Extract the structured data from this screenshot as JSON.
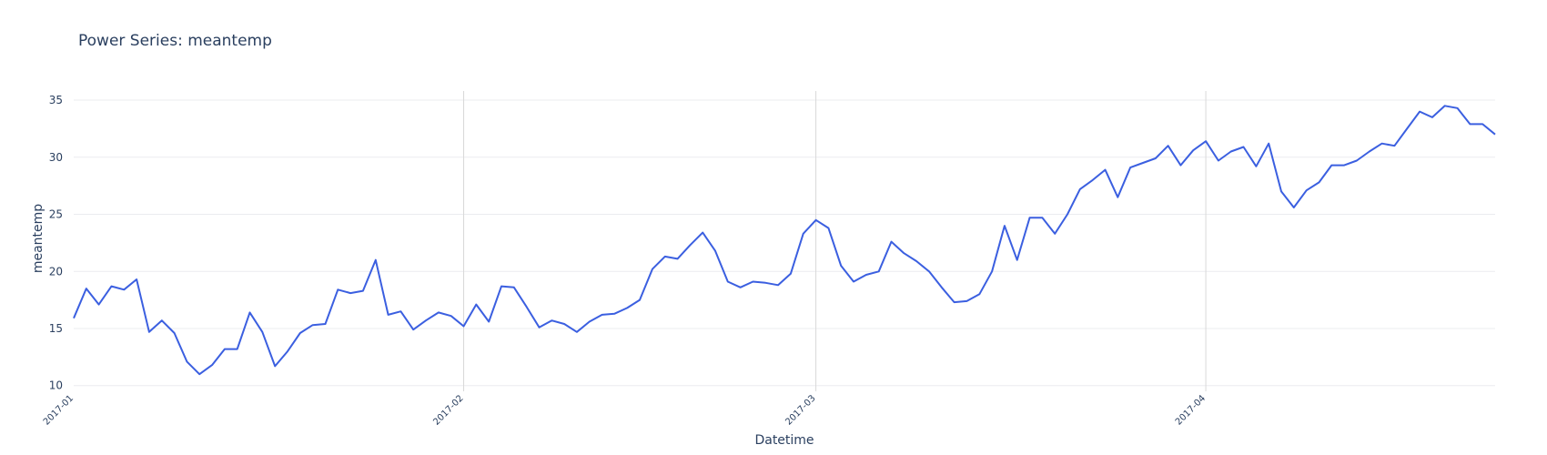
{
  "chart_data": {
    "type": "line",
    "title": "Power Series: meantemp",
    "xlabel": "Datetime",
    "ylabel": "meantemp",
    "ylim": [
      9.5,
      35.8
    ],
    "xlim": [
      "2017-01-01",
      "2017-04-24"
    ],
    "yticks": [
      10,
      15,
      20,
      25,
      30,
      35
    ],
    "xticks": [
      {
        "date": "2017-01-01",
        "label": "2017-01"
      },
      {
        "date": "2017-02-01",
        "label": "2017-02"
      },
      {
        "date": "2017-03-01",
        "label": "2017-03"
      },
      {
        "date": "2017-04-01",
        "label": "2017-04"
      }
    ],
    "grid": true,
    "colors": {
      "line": "#3b5fe0",
      "grid": "#ebecef",
      "vgrid": "#d9d9d9",
      "text": "#2a3f5f"
    },
    "series": [
      {
        "x": [
          "2017-01-01",
          "2017-01-02",
          "2017-01-03",
          "2017-01-04",
          "2017-01-05",
          "2017-01-06",
          "2017-01-07",
          "2017-01-08",
          "2017-01-09",
          "2017-01-10",
          "2017-01-11",
          "2017-01-12",
          "2017-01-13",
          "2017-01-14",
          "2017-01-15",
          "2017-01-16",
          "2017-01-17",
          "2017-01-18",
          "2017-01-19",
          "2017-01-20",
          "2017-01-21",
          "2017-01-22",
          "2017-01-23",
          "2017-01-24",
          "2017-01-25",
          "2017-01-26",
          "2017-01-27",
          "2017-01-28",
          "2017-01-29",
          "2017-01-30",
          "2017-01-31",
          "2017-02-01",
          "2017-02-02",
          "2017-02-03",
          "2017-02-04",
          "2017-02-05",
          "2017-02-06",
          "2017-02-07",
          "2017-02-08",
          "2017-02-09",
          "2017-02-10",
          "2017-02-11",
          "2017-02-12",
          "2017-02-13",
          "2017-02-14",
          "2017-02-15",
          "2017-02-16",
          "2017-02-17",
          "2017-02-18",
          "2017-02-19",
          "2017-02-20",
          "2017-02-21",
          "2017-02-22",
          "2017-02-23",
          "2017-02-24",
          "2017-02-25",
          "2017-02-26",
          "2017-02-27",
          "2017-02-28",
          "2017-03-01",
          "2017-03-02",
          "2017-03-03",
          "2017-03-04",
          "2017-03-05",
          "2017-03-06",
          "2017-03-07",
          "2017-03-08",
          "2017-03-09",
          "2017-03-10",
          "2017-03-11",
          "2017-03-12",
          "2017-03-13",
          "2017-03-14",
          "2017-03-15",
          "2017-03-16",
          "2017-03-17",
          "2017-03-18",
          "2017-03-19",
          "2017-03-20",
          "2017-03-21",
          "2017-03-22",
          "2017-03-23",
          "2017-03-24",
          "2017-03-25",
          "2017-03-26",
          "2017-03-27",
          "2017-03-28",
          "2017-03-29",
          "2017-03-30",
          "2017-03-31",
          "2017-04-01",
          "2017-04-02",
          "2017-04-03",
          "2017-04-04",
          "2017-04-05",
          "2017-04-06",
          "2017-04-07",
          "2017-04-08",
          "2017-04-09",
          "2017-04-10",
          "2017-04-11",
          "2017-04-12",
          "2017-04-13",
          "2017-04-14",
          "2017-04-15",
          "2017-04-16",
          "2017-04-17",
          "2017-04-18",
          "2017-04-19",
          "2017-04-20",
          "2017-04-21",
          "2017-04-22",
          "2017-04-23",
          "2017-04-24"
        ],
        "y": [
          15.9,
          18.5,
          17.1,
          18.7,
          18.4,
          19.3,
          14.7,
          15.7,
          14.6,
          12.1,
          11.0,
          11.8,
          13.2,
          13.2,
          16.4,
          14.7,
          11.7,
          13.0,
          14.6,
          15.3,
          15.4,
          18.4,
          18.1,
          18.3,
          21.0,
          16.2,
          16.5,
          14.9,
          15.7,
          16.4,
          16.1,
          15.2,
          17.1,
          15.6,
          18.7,
          18.6,
          16.9,
          15.1,
          15.7,
          15.4,
          14.7,
          15.6,
          16.2,
          16.3,
          16.8,
          17.5,
          20.2,
          21.3,
          21.1,
          22.3,
          23.4,
          21.8,
          19.1,
          18.6,
          19.1,
          19.0,
          18.8,
          19.8,
          23.3,
          24.5,
          23.8,
          20.5,
          19.1,
          19.7,
          20.0,
          22.6,
          21.6,
          20.9,
          20.0,
          18.6,
          17.3,
          17.4,
          18.0,
          20.0,
          24.0,
          21.0,
          24.7,
          24.7,
          23.3,
          25.0,
          27.2,
          28.0,
          28.9,
          26.5,
          29.1,
          29.5,
          29.9,
          31.0,
          29.3,
          30.6,
          31.4,
          29.7,
          30.5,
          30.9,
          29.2,
          31.2,
          27.0,
          25.6,
          27.1,
          27.8,
          29.3,
          29.3,
          29.7,
          30.5,
          31.2,
          31.0,
          32.5,
          34.0,
          33.5,
          34.5,
          34.3,
          32.9,
          32.9,
          32.0
        ]
      }
    ]
  }
}
